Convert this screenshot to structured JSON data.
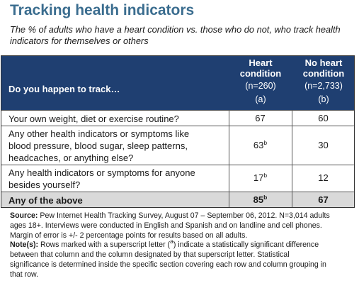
{
  "title": "Tracking health indicators",
  "subtitle": "The % of adults who have a heart condition vs. those who do not, who track health indicators for themselves or others",
  "table": {
    "question_header": "Do you happen to track…",
    "columns": [
      {
        "name_line1": "Heart",
        "name_line2": "condition",
        "n": "(n=260)",
        "letter": "(a)"
      },
      {
        "name_line1": "No heart",
        "name_line2": "condition",
        "n": "(n=2,733)",
        "letter": "(b)"
      }
    ],
    "rows": [
      {
        "label": "Your own weight, diet or exercise routine?",
        "a": "67",
        "a_sup": "",
        "b": "60",
        "b_sup": ""
      },
      {
        "label_lines": [
          "Any other health indicators or symptoms like",
          "blood pressure, blood sugar, sleep patterns,",
          "headcaches, or anything else?"
        ],
        "a": "63",
        "a_sup": "b",
        "b": "30",
        "b_sup": ""
      },
      {
        "label_lines": [
          "Any health indicators or symptoms for anyone",
          "besides yourself?"
        ],
        "a": "17",
        "a_sup": "b",
        "b": "12",
        "b_sup": ""
      },
      {
        "label": "Any of the above",
        "a": "85",
        "a_sup": "b",
        "b": "67",
        "b_sup": ""
      }
    ]
  },
  "notes": {
    "source_label": "Source:",
    "source_line1": " Pew Internet Health Tracking Survey, August 07 – September 06, 2012. N=3,014 adults",
    "source_line2": "ages 18+. Interviews were conducted in English and Spanish and on landline and cell phones.",
    "source_line3": "Margin of error is +/- 2 percentage points for results based on all adults.",
    "note_label": "Note(s):",
    "note_line1_a": " Rows marked with a superscript letter (",
    "note_sup": "a",
    "note_line1_b": ") indicate a statistically significant difference",
    "note_line2": "between that column and the column designated by that superscript letter. Statistical",
    "note_line3": "significance is determined inside the specific section covering each row and column grouping in",
    "note_line4": "that row."
  }
}
